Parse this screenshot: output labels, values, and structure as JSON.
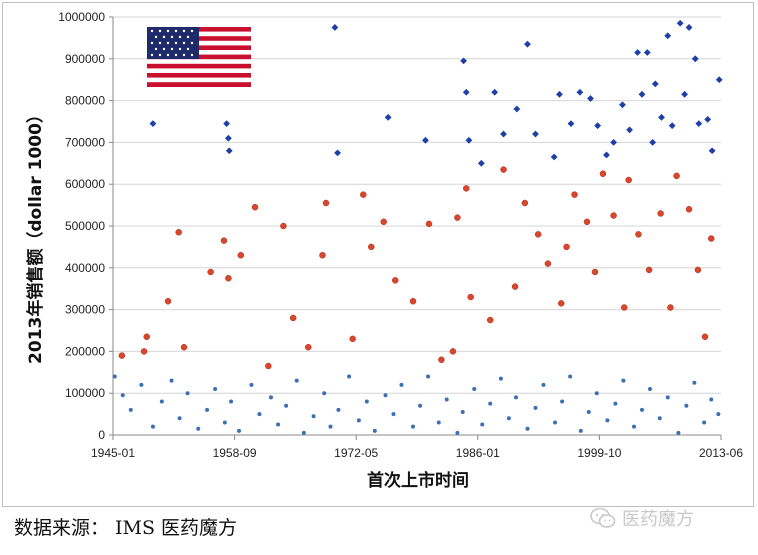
{
  "chart_data": {
    "type": "scatter",
    "title": "",
    "xlabel": "首次上市时间",
    "ylabel": "2013年销售额（dollar 1000）",
    "x_ticks": [
      "1945-01",
      "1958-09",
      "1972-05",
      "1986-01",
      "1999-10",
      "2013-06"
    ],
    "x_range": [
      1945.0,
      2013.5
    ],
    "y_ticks": [
      "0",
      "100000",
      "200000",
      "300000",
      "400000",
      "500000",
      "600000",
      "700000",
      "800000",
      "900000",
      "1000000"
    ],
    "ylim": [
      0,
      1000000
    ],
    "grid": "horizontal",
    "colors": {
      "low": "#3a6fb5",
      "mid": "#d9462b",
      "high": "#1f3fa8"
    },
    "series": [
      {
        "color_key": "low",
        "marker": "dot",
        "points": [
          [
            1945.2,
            140000
          ],
          [
            1946.1,
            95000
          ],
          [
            1947.0,
            60000
          ],
          [
            1948.2,
            120000
          ],
          [
            1949.5,
            20000
          ],
          [
            1950.5,
            80000
          ],
          [
            1951.6,
            130000
          ],
          [
            1952.5,
            40000
          ],
          [
            1953.4,
            100000
          ],
          [
            1954.6,
            15000
          ],
          [
            1955.6,
            60000
          ],
          [
            1956.5,
            110000
          ],
          [
            1957.6,
            30000
          ],
          [
            1958.3,
            80000
          ],
          [
            1959.2,
            10000
          ],
          [
            1960.6,
            120000
          ],
          [
            1961.5,
            50000
          ],
          [
            1962.8,
            90000
          ],
          [
            1963.6,
            25000
          ],
          [
            1964.5,
            70000
          ],
          [
            1965.7,
            130000
          ],
          [
            1966.5,
            5000
          ],
          [
            1967.6,
            45000
          ],
          [
            1968.8,
            100000
          ],
          [
            1969.5,
            20000
          ],
          [
            1970.4,
            60000
          ],
          [
            1971.6,
            140000
          ],
          [
            1972.7,
            35000
          ],
          [
            1973.6,
            80000
          ],
          [
            1974.5,
            10000
          ],
          [
            1975.7,
            95000
          ],
          [
            1976.6,
            50000
          ],
          [
            1977.5,
            120000
          ],
          [
            1978.8,
            20000
          ],
          [
            1979.6,
            70000
          ],
          [
            1980.5,
            140000
          ],
          [
            1981.7,
            30000
          ],
          [
            1982.6,
            85000
          ],
          [
            1983.8,
            5000
          ],
          [
            1984.4,
            55000
          ],
          [
            1985.7,
            110000
          ],
          [
            1986.6,
            25000
          ],
          [
            1987.5,
            75000
          ],
          [
            1988.7,
            135000
          ],
          [
            1989.6,
            40000
          ],
          [
            1990.4,
            90000
          ],
          [
            1991.7,
            15000
          ],
          [
            1992.6,
            65000
          ],
          [
            1993.5,
            120000
          ],
          [
            1994.8,
            30000
          ],
          [
            1995.6,
            80000
          ],
          [
            1996.5,
            140000
          ],
          [
            1997.7,
            10000
          ],
          [
            1998.6,
            55000
          ],
          [
            1999.5,
            100000
          ],
          [
            2000.7,
            35000
          ],
          [
            2001.6,
            75000
          ],
          [
            2002.5,
            130000
          ],
          [
            2003.7,
            20000
          ],
          [
            2004.6,
            60000
          ],
          [
            2005.5,
            110000
          ],
          [
            2006.6,
            40000
          ],
          [
            2007.5,
            90000
          ],
          [
            2008.7,
            5000
          ],
          [
            2009.6,
            70000
          ],
          [
            2010.5,
            125000
          ],
          [
            2011.6,
            30000
          ],
          [
            2012.4,
            85000
          ],
          [
            2013.2,
            50000
          ]
        ]
      },
      {
        "color_key": "mid",
        "marker": "circle",
        "points": [
          [
            1946.0,
            190000
          ],
          [
            1948.5,
            200000
          ],
          [
            1948.8,
            235000
          ],
          [
            1951.2,
            320000
          ],
          [
            1952.4,
            485000
          ],
          [
            1953.0,
            210000
          ],
          [
            1956.0,
            390000
          ],
          [
            1957.5,
            465000
          ],
          [
            1958.0,
            375000
          ],
          [
            1959.4,
            430000
          ],
          [
            1961.0,
            545000
          ],
          [
            1962.5,
            165000
          ],
          [
            1964.2,
            500000
          ],
          [
            1965.3,
            280000
          ],
          [
            1967.0,
            210000
          ],
          [
            1968.6,
            430000
          ],
          [
            1969.0,
            555000
          ],
          [
            1972.0,
            230000
          ],
          [
            1973.2,
            575000
          ],
          [
            1974.1,
            450000
          ],
          [
            1975.5,
            510000
          ],
          [
            1976.8,
            370000
          ],
          [
            1978.8,
            320000
          ],
          [
            1980.6,
            505000
          ],
          [
            1982.0,
            180000
          ],
          [
            1983.3,
            200000
          ],
          [
            1983.8,
            520000
          ],
          [
            1984.8,
            590000
          ],
          [
            1985.3,
            330000
          ],
          [
            1987.5,
            275000
          ],
          [
            1989.0,
            635000
          ],
          [
            1990.3,
            355000
          ],
          [
            1991.4,
            555000
          ],
          [
            1992.9,
            480000
          ],
          [
            1994.0,
            410000
          ],
          [
            1995.5,
            315000
          ],
          [
            1996.1,
            450000
          ],
          [
            1997.0,
            575000
          ],
          [
            1998.4,
            510000
          ],
          [
            1999.3,
            390000
          ],
          [
            2000.2,
            625000
          ],
          [
            2001.4,
            525000
          ],
          [
            2002.6,
            305000
          ],
          [
            2003.1,
            610000
          ],
          [
            2004.2,
            480000
          ],
          [
            2005.4,
            395000
          ],
          [
            2006.7,
            530000
          ],
          [
            2007.8,
            305000
          ],
          [
            2008.5,
            620000
          ],
          [
            2009.9,
            540000
          ],
          [
            2010.9,
            395000
          ],
          [
            2011.7,
            235000
          ],
          [
            2012.4,
            470000
          ]
        ]
      },
      {
        "color_key": "high",
        "marker": "diamond",
        "points": [
          [
            1949.5,
            745000
          ],
          [
            1957.8,
            745000
          ],
          [
            1958.0,
            710000
          ],
          [
            1958.1,
            680000
          ],
          [
            1970.0,
            975000
          ],
          [
            1970.3,
            675000
          ],
          [
            1976.0,
            760000
          ],
          [
            1980.2,
            705000
          ],
          [
            1984.5,
            895000
          ],
          [
            1984.8,
            820000
          ],
          [
            1985.1,
            705000
          ],
          [
            1986.5,
            650000
          ],
          [
            1988.0,
            820000
          ],
          [
            1989.0,
            720000
          ],
          [
            1990.5,
            780000
          ],
          [
            1991.7,
            935000
          ],
          [
            1992.6,
            720000
          ],
          [
            1994.7,
            665000
          ],
          [
            1995.3,
            815000
          ],
          [
            1996.6,
            745000
          ],
          [
            1997.6,
            820000
          ],
          [
            1998.8,
            805000
          ],
          [
            1999.6,
            740000
          ],
          [
            2000.6,
            670000
          ],
          [
            2001.4,
            700000
          ],
          [
            2002.4,
            790000
          ],
          [
            2003.2,
            730000
          ],
          [
            2004.1,
            915000
          ],
          [
            2004.6,
            815000
          ],
          [
            2005.2,
            915000
          ],
          [
            2005.8,
            700000
          ],
          [
            2006.1,
            840000
          ],
          [
            2006.8,
            760000
          ],
          [
            2007.5,
            955000
          ],
          [
            2008.0,
            740000
          ],
          [
            2008.9,
            985000
          ],
          [
            2009.4,
            815000
          ],
          [
            2009.9,
            975000
          ],
          [
            2010.6,
            900000
          ],
          [
            2011.0,
            745000
          ],
          [
            2012.0,
            755000
          ],
          [
            2012.5,
            680000
          ],
          [
            2013.3,
            850000
          ]
        ]
      }
    ]
  },
  "source_note": "数据来源： IMS 医药魔方",
  "watermark": {
    "icon": "wechat-icon",
    "text": "医药魔方"
  }
}
